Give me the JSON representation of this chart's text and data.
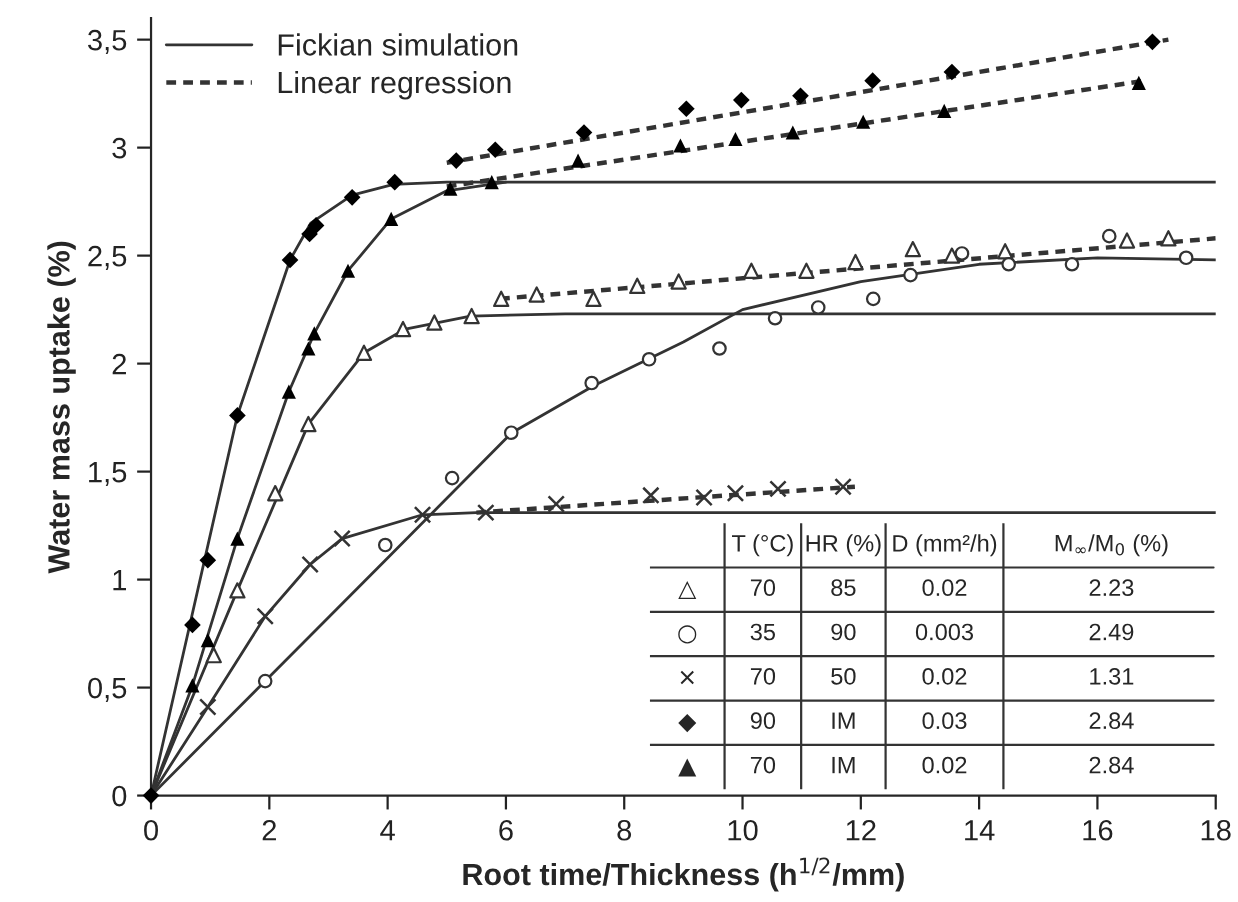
{
  "chart_data": {
    "type": "scatter",
    "xlabel": "Root time/Thickness (h$^{1/2}$/mm)",
    "ylabel": "Water mass uptake (%)",
    "xlim": [
      0,
      18
    ],
    "ylim": [
      0,
      3.6
    ],
    "xticks": [
      0,
      2,
      4,
      6,
      8,
      10,
      12,
      14,
      16,
      18
    ],
    "yticks": [
      0,
      {
        "value": 0.5,
        "label": "0,5"
      },
      1,
      {
        "value": 1.5,
        "label": "1,5"
      },
      2,
      {
        "value": 2.5,
        "label": "2,5"
      },
      3,
      {
        "value": 3.5,
        "label": "3,5"
      }
    ],
    "grid": false,
    "legend": "top left",
    "series": [
      {
        "type": "line",
        "name": "Fickian simulation",
        "color": "#333333",
        "line_style": "solid",
        "marker": "none",
        "x": [
          0,
          1.46,
          2.35,
          2.7,
          3.4,
          4.1,
          5,
          18
        ],
        "values": [
          0,
          1.76,
          2.48,
          2.65,
          2.78,
          2.83,
          2.84,
          2.84
        ]
      },
      {
        "type": "line",
        "name": "Linear regression",
        "color": "#333333",
        "line_style": "dashed",
        "marker": "none",
        "x": [
          5,
          17.2
        ],
        "values": [
          2.93,
          3.5
        ]
      },
      {
        "type": "line",
        "color": "#333333",
        "line_style": "solid",
        "marker": "none",
        "x": [
          0,
          0.7,
          1.46,
          2.33,
          2.76,
          3.33,
          4.06,
          5,
          6
        ],
        "values": [
          0,
          0.51,
          1.19,
          1.87,
          2.14,
          2.43,
          2.67,
          2.8,
          2.84
        ]
      },
      {
        "type": "line",
        "color": "#333333",
        "line_style": "dashed",
        "marker": "none",
        "x": [
          5,
          16.8
        ],
        "values": [
          2.82,
          3.31
        ]
      },
      {
        "type": "line",
        "color": "#333333",
        "line_style": "solid",
        "marker": "none",
        "x": [
          0,
          1.46,
          2.66,
          3.6,
          4.3,
          5.4,
          7,
          18
        ],
        "values": [
          0,
          0.95,
          1.72,
          2.05,
          2.16,
          2.22,
          2.23,
          2.23
        ]
      },
      {
        "type": "line",
        "color": "#333333",
        "line_style": "dashed",
        "marker": "none",
        "x": [
          5.9,
          18
        ],
        "values": [
          2.3,
          2.58
        ]
      },
      {
        "type": "line",
        "color": "#333333",
        "line_style": "solid",
        "marker": "none",
        "x": [
          0,
          1.93,
          4,
          6.1,
          7.5,
          9,
          10,
          12,
          14,
          16,
          18
        ],
        "values": [
          0,
          0.53,
          1.1,
          1.68,
          1.9,
          2.1,
          2.25,
          2.38,
          2.46,
          2.49,
          2.48
        ]
      },
      {
        "type": "line",
        "color": "#333333",
        "line_style": "solid",
        "marker": "none",
        "x": [
          0,
          0.96,
          1.93,
          2.69,
          3.23,
          4.59,
          5.5,
          18
        ],
        "values": [
          0,
          0.41,
          0.83,
          1.07,
          1.19,
          1.3,
          1.31,
          1.31
        ]
      },
      {
        "type": "line",
        "color": "#333333",
        "line_style": "dashed",
        "marker": "none",
        "x": [
          5.5,
          11.9
        ],
        "values": [
          1.31,
          1.43
        ]
      },
      {
        "color": "#000000",
        "marker": "diamond",
        "x": [
          0,
          0.7,
          0.96,
          1.46,
          2.35,
          2.68,
          2.79,
          3.4,
          4.12,
          5.16,
          5.82,
          7.32,
          9.05,
          9.98,
          10.98,
          12.2,
          13.54,
          16.93
        ],
        "values": [
          0,
          0.79,
          1.09,
          1.76,
          2.48,
          2.6,
          2.64,
          2.77,
          2.84,
          2.94,
          2.99,
          3.07,
          3.18,
          3.22,
          3.24,
          3.31,
          3.35,
          3.49
        ]
      },
      {
        "color": "#000000",
        "marker": "triangle",
        "x": [
          0.7,
          0.96,
          1.46,
          2.33,
          2.66,
          2.76,
          3.33,
          4.06,
          5.06,
          5.76,
          7.22,
          8.95,
          9.88,
          10.85,
          12.04,
          13.41,
          16.7
        ],
        "values": [
          0.51,
          0.72,
          1.19,
          1.87,
          2.07,
          2.14,
          2.43,
          2.67,
          2.81,
          2.84,
          2.94,
          3.01,
          3.04,
          3.07,
          3.12,
          3.17,
          3.3
        ]
      },
      {
        "color": "#ffffff",
        "marker": "triangle",
        "x": [
          1.06,
          1.46,
          2.1,
          2.66,
          3.6,
          4.26,
          4.79,
          5.42,
          5.92,
          6.52,
          7.48,
          8.22,
          8.92,
          10.15,
          11.08,
          11.91,
          12.88,
          13.54,
          14.44,
          16.5,
          17.2
        ],
        "values": [
          0.65,
          0.95,
          1.4,
          1.72,
          2.05,
          2.16,
          2.19,
          2.22,
          2.3,
          2.32,
          2.3,
          2.36,
          2.38,
          2.43,
          2.43,
          2.47,
          2.53,
          2.5,
          2.52,
          2.57,
          2.58
        ]
      },
      {
        "color": "#ffffff",
        "marker": "circle",
        "x": [
          1.93,
          3.96,
          5.09,
          6.09,
          7.45,
          8.42,
          9.61,
          10.55,
          11.28,
          12.21,
          12.84,
          13.71,
          14.5,
          15.57,
          16.2,
          17.5
        ],
        "values": [
          0.53,
          1.16,
          1.47,
          1.68,
          1.91,
          2.02,
          2.07,
          2.21,
          2.26,
          2.3,
          2.41,
          2.51,
          2.46,
          2.46,
          2.59,
          2.49
        ]
      },
      {
        "color": "#333333",
        "marker": "cross",
        "x": [
          0.96,
          1.93,
          2.69,
          3.23,
          4.59,
          5.66,
          6.85,
          8.45,
          9.35,
          9.88,
          10.6,
          11.7
        ],
        "values": [
          0.41,
          0.83,
          1.07,
          1.19,
          1.3,
          1.31,
          1.35,
          1.39,
          1.38,
          1.4,
          1.42,
          1.43
        ]
      }
    ],
    "annotations": [
      "T (°C)",
      "HR (%)",
      "D (mm²/h)",
      "M$_{∞}$/M$_{0}$ (%)",
      "△",
      "70",
      "85",
      "0.02",
      "2.23",
      "○",
      "35",
      "90",
      "0.003",
      "2.49",
      "×",
      "70",
      "50",
      "0.02",
      "1.31",
      "◆",
      "90",
      "IM",
      "0.03",
      "2.84",
      "▲",
      "70",
      "IM",
      "0.02",
      "2.84"
    ]
  }
}
